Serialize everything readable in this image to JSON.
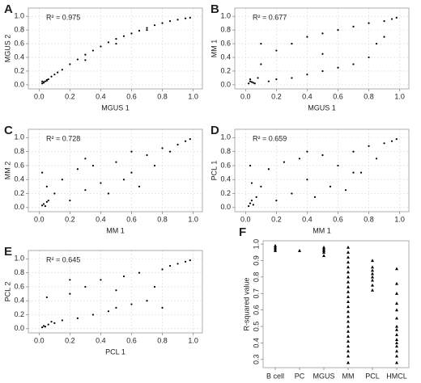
{
  "chart_data": [
    {
      "type": "scatter",
      "panel": "A",
      "xlabel": "MGUS 1",
      "ylabel": "MGUS 2",
      "annotation": "R² = 0.975",
      "x": [
        0.02,
        0.03,
        0.04,
        0.05,
        0.06,
        0.08,
        0.1,
        0.12,
        0.15,
        0.2,
        0.25,
        0.3,
        0.35,
        0.4,
        0.45,
        0.5,
        0.55,
        0.6,
        0.65,
        0.7,
        0.75,
        0.8,
        0.85,
        0.9,
        0.95,
        0.98,
        0.3,
        0.5,
        0.7,
        0.03,
        0.05,
        0.02
      ],
      "y": [
        0.02,
        0.04,
        0.05,
        0.07,
        0.08,
        0.12,
        0.15,
        0.18,
        0.22,
        0.3,
        0.37,
        0.44,
        0.5,
        0.56,
        0.62,
        0.67,
        0.71,
        0.75,
        0.79,
        0.83,
        0.87,
        0.9,
        0.93,
        0.95,
        0.97,
        0.98,
        0.36,
        0.6,
        0.8,
        0.03,
        0.06,
        0.05
      ],
      "xlim": [
        -0.07,
        1.06
      ],
      "ylim": [
        -0.06,
        1.12
      ],
      "xticks": [
        {
          "value": 0,
          "label": "0.0"
        },
        0.2,
        0.4,
        0.6,
        0.8,
        {
          "value": 1,
          "label": "1.0"
        }
      ],
      "yticks": [
        {
          "value": 0,
          "label": "0.0"
        },
        0.2,
        0.4,
        0.6,
        0.8,
        {
          "value": 1,
          "label": "1.0"
        }
      ],
      "grid": true
    },
    {
      "type": "scatter",
      "panel": "B",
      "xlabel": "MGUS 1",
      "ylabel": "MM 1",
      "annotation": "R² = 0.677",
      "x": [
        0.02,
        0.03,
        0.05,
        0.08,
        0.1,
        0.15,
        0.2,
        0.2,
        0.3,
        0.3,
        0.4,
        0.4,
        0.5,
        0.5,
        0.6,
        0.6,
        0.7,
        0.7,
        0.8,
        0.8,
        0.9,
        0.9,
        0.95,
        0.98,
        0.1,
        0.5,
        0.85,
        0.04,
        0.06,
        0.03
      ],
      "y": [
        0.02,
        0.05,
        0.03,
        0.1,
        0.3,
        0.05,
        0.5,
        0.08,
        0.6,
        0.1,
        0.7,
        0.15,
        0.75,
        0.2,
        0.8,
        0.25,
        0.85,
        0.3,
        0.9,
        0.4,
        0.93,
        0.7,
        0.96,
        0.98,
        0.6,
        0.45,
        0.6,
        0.04,
        0.02,
        0.08
      ],
      "xlim": [
        -0.07,
        1.06
      ],
      "ylim": [
        -0.06,
        1.12
      ],
      "xticks": [
        {
          "value": 0,
          "label": "0.0"
        },
        0.2,
        0.4,
        0.6,
        0.8,
        {
          "value": 1,
          "label": "1.0"
        }
      ],
      "yticks": [
        {
          "value": 0,
          "label": "0.0"
        },
        0.2,
        0.4,
        0.6,
        0.8,
        {
          "value": 1,
          "label": "1.0"
        }
      ],
      "grid": true
    },
    {
      "type": "scatter",
      "panel": "C",
      "xlabel": "MM 1",
      "ylabel": "MM 2",
      "annotation": "R² = 0.728",
      "x": [
        0.02,
        0.03,
        0.04,
        0.05,
        0.06,
        0.1,
        0.15,
        0.2,
        0.25,
        0.3,
        0.35,
        0.4,
        0.45,
        0.5,
        0.55,
        0.6,
        0.65,
        0.7,
        0.75,
        0.8,
        0.85,
        0.9,
        0.95,
        0.98,
        0.02,
        0.05,
        0.3,
        0.6
      ],
      "y": [
        0.03,
        0.05,
        0.02,
        0.08,
        0.1,
        0.2,
        0.4,
        0.1,
        0.55,
        0.25,
        0.6,
        0.35,
        0.2,
        0.65,
        0.4,
        0.5,
        0.3,
        0.75,
        0.6,
        0.85,
        0.8,
        0.9,
        0.95,
        0.98,
        0.5,
        0.3,
        0.7,
        0.8
      ],
      "xlim": [
        -0.07,
        1.06
      ],
      "ylim": [
        -0.06,
        1.12
      ],
      "xticks": [
        {
          "value": 0,
          "label": "0.0"
        },
        0.2,
        0.4,
        0.6,
        0.8,
        {
          "value": 1,
          "label": "1.0"
        }
      ],
      "yticks": [
        {
          "value": 0,
          "label": "0.0"
        },
        0.2,
        0.4,
        0.6,
        0.8,
        {
          "value": 1,
          "label": "1.0"
        }
      ],
      "grid": true
    },
    {
      "type": "scatter",
      "panel": "D",
      "xlabel": "MM 1",
      "ylabel": "PCL 1",
      "annotation": "R² = 0.659",
      "x": [
        0.02,
        0.03,
        0.04,
        0.05,
        0.07,
        0.1,
        0.15,
        0.2,
        0.25,
        0.3,
        0.35,
        0.4,
        0.45,
        0.5,
        0.55,
        0.6,
        0.65,
        0.7,
        0.75,
        0.8,
        0.85,
        0.9,
        0.95,
        0.98,
        0.03,
        0.04,
        0.4,
        0.7
      ],
      "y": [
        0.02,
        0.06,
        0.1,
        0.04,
        0.15,
        0.3,
        0.55,
        0.1,
        0.65,
        0.2,
        0.7,
        0.4,
        0.15,
        0.75,
        0.3,
        0.6,
        0.25,
        0.8,
        0.5,
        0.88,
        0.7,
        0.92,
        0.95,
        0.98,
        0.6,
        0.35,
        0.8,
        0.5
      ],
      "xlim": [
        -0.07,
        1.06
      ],
      "ylim": [
        -0.06,
        1.12
      ],
      "xticks": [
        {
          "value": 0,
          "label": "0.0"
        },
        0.2,
        0.4,
        0.6,
        0.8,
        {
          "value": 1,
          "label": "1.0"
        }
      ],
      "yticks": [
        {
          "value": 0,
          "label": "0.0"
        },
        0.2,
        0.4,
        0.6,
        0.8,
        {
          "value": 1,
          "label": "1.0"
        }
      ],
      "grid": true
    },
    {
      "type": "scatter",
      "panel": "E",
      "xlabel": "PCL 1",
      "ylabel": "PCL 2",
      "annotation": "R² = 0.645",
      "x": [
        0.02,
        0.03,
        0.04,
        0.06,
        0.08,
        0.1,
        0.15,
        0.2,
        0.25,
        0.3,
        0.35,
        0.4,
        0.45,
        0.5,
        0.55,
        0.6,
        0.65,
        0.7,
        0.75,
        0.8,
        0.85,
        0.9,
        0.95,
        0.98,
        0.05,
        0.2,
        0.5,
        0.8
      ],
      "y": [
        0.02,
        0.04,
        0.03,
        0.06,
        0.1,
        0.08,
        0.12,
        0.5,
        0.15,
        0.6,
        0.2,
        0.7,
        0.25,
        0.3,
        0.75,
        0.35,
        0.8,
        0.4,
        0.6,
        0.85,
        0.9,
        0.93,
        0.96,
        0.98,
        0.45,
        0.7,
        0.55,
        0.3
      ],
      "xlim": [
        -0.07,
        1.06
      ],
      "ylim": [
        -0.06,
        1.12
      ],
      "xticks": [
        {
          "value": 0,
          "label": "0.0"
        },
        0.2,
        0.4,
        0.6,
        0.8,
        {
          "value": 1,
          "label": "1.0"
        }
      ],
      "yticks": [
        {
          "value": 0,
          "label": "0.0"
        },
        0.2,
        0.4,
        0.6,
        0.8,
        {
          "value": 1,
          "label": "1.0"
        }
      ],
      "grid": true
    },
    {
      "type": "strip",
      "panel": "F",
      "ylabel": "R-squared value",
      "categories": [
        "B cell",
        "PC",
        "MGUS",
        "MM",
        "PCL",
        "HMCL"
      ],
      "values": [
        [
          0.96,
          0.97,
          0.98,
          0.99
        ],
        [
          0.96
        ],
        [
          0.93,
          0.95,
          0.96,
          0.97,
          0.98
        ],
        [
          0.28,
          0.32,
          0.35,
          0.38,
          0.41,
          0.44,
          0.47,
          0.5,
          0.53,
          0.56,
          0.59,
          0.62,
          0.65,
          0.68,
          0.71,
          0.74,
          0.77,
          0.8,
          0.83,
          0.86,
          0.89,
          0.92,
          0.95,
          0.98
        ],
        [
          0.72,
          0.75,
          0.78,
          0.8,
          0.82,
          0.84,
          0.86,
          0.9
        ],
        [
          0.28,
          0.32,
          0.35,
          0.38,
          0.4,
          0.42,
          0.45,
          0.48,
          0.5,
          0.55,
          0.6,
          0.64,
          0.7,
          0.76,
          0.85
        ]
      ],
      "ylim": [
        0.25,
        1.02
      ],
      "yticks": [
        0.3,
        0.4,
        0.5,
        0.6,
        0.7,
        0.8,
        0.9,
        {
          "value": 1,
          "label": "1.0"
        }
      ]
    }
  ]
}
